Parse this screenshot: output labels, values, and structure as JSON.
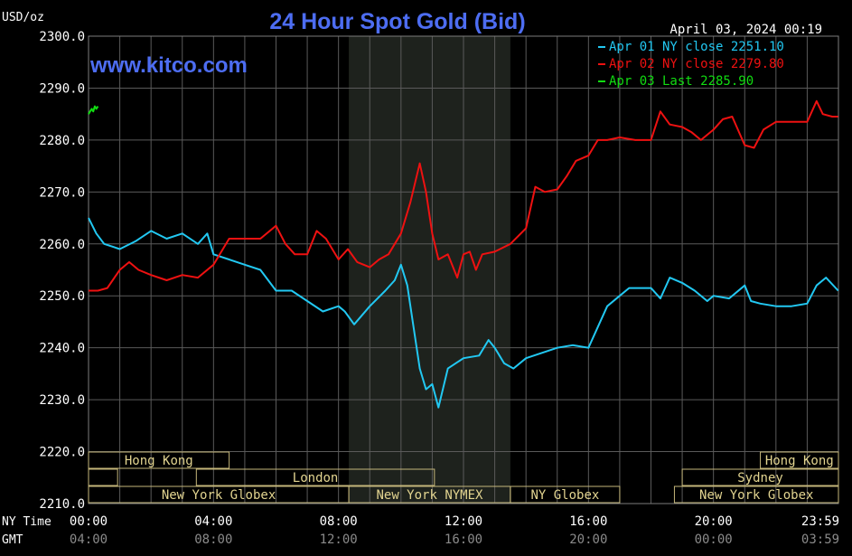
{
  "header": {
    "unit": "USD/oz",
    "title": "24 Hour Spot Gold (Bid)",
    "timestamp": "April 03, 2024 00:19",
    "website": "www.kitco.com"
  },
  "axis_labels": {
    "ny_time": "NY Time",
    "gmt": "GMT"
  },
  "chart_data": {
    "type": "line",
    "title": "24 Hour Spot Gold (Bid)",
    "ylabel": "USD/oz",
    "ylim": [
      2210,
      2300
    ],
    "xlim": [
      0,
      24
    ],
    "y_ticks": [
      "2300.0",
      "2290.0",
      "2280.0",
      "2270.0",
      "2260.0",
      "2250.0",
      "2240.0",
      "2230.0",
      "2220.0",
      "2210.0"
    ],
    "x_ticks_ny": [
      "00:00",
      "04:00",
      "08:00",
      "12:00",
      "16:00",
      "20:00",
      "23:59"
    ],
    "x_ticks_gmt": [
      "04:00",
      "08:00",
      "12:00",
      "16:00",
      "20:00",
      "00:00",
      "03:59"
    ],
    "x_tick_hours": [
      0,
      4,
      8,
      12,
      16,
      20,
      24
    ],
    "grid": true,
    "legend_position": "top-right",
    "shaded_hours": [
      8.33,
      13.5
    ],
    "series": [
      {
        "name": "Apr 01 NY close 2251.10",
        "color": "#22c8f2",
        "x": [
          0,
          0.25,
          0.5,
          1,
          1.5,
          2,
          2.5,
          3,
          3.5,
          3.8,
          4,
          4.5,
          5,
          5.5,
          6,
          6.5,
          7,
          7.5,
          8,
          8.2,
          8.5,
          9,
          9.5,
          9.8,
          10,
          10.2,
          10.4,
          10.6,
          10.8,
          11,
          11.2,
          11.5,
          12,
          12.5,
          12.8,
          13,
          13.3,
          13.6,
          14,
          14.5,
          15,
          15.5,
          16,
          16.3,
          16.6,
          17,
          17.3,
          17.6,
          18,
          18.3,
          18.6,
          19,
          19.4,
          19.8,
          20,
          20.5,
          21,
          21.2,
          21.5,
          22,
          22.5,
          23,
          23.3,
          23.6,
          23.99
        ],
        "y": [
          2265.0,
          2262.0,
          2260.0,
          2259.0,
          2260.5,
          2262.5,
          2261.0,
          2262.0,
          2260.0,
          2262.0,
          2258.0,
          2257.0,
          2256.0,
          2255.0,
          2251.0,
          2251.0,
          2249.0,
          2247.0,
          2248.0,
          2247.0,
          2244.5,
          2248.0,
          2251.0,
          2253.0,
          2256.0,
          2252.0,
          2244.0,
          2236.0,
          2232.0,
          2233.0,
          2228.5,
          2236.0,
          2238.0,
          2238.5,
          2241.5,
          2240.0,
          2237.0,
          2236.0,
          2238.0,
          2239.0,
          2240.0,
          2240.5,
          2240.0,
          2244.0,
          2248.0,
          2250.0,
          2251.5,
          2251.5,
          2251.5,
          2249.5,
          2253.5,
          2252.5,
          2251.0,
          2249.0,
          2250.0,
          2249.5,
          2252.0,
          2249.0,
          2248.5,
          2248.0,
          2248.0,
          2248.5,
          2252.0,
          2253.5,
          2251.0
        ]
      },
      {
        "name": "Apr 02 NY close 2279.80",
        "color": "#ee1111",
        "x": [
          0,
          0.3,
          0.6,
          1,
          1.3,
          1.6,
          2,
          2.5,
          3,
          3.5,
          4,
          4.5,
          5,
          5.5,
          6,
          6.3,
          6.6,
          7,
          7.3,
          7.6,
          8,
          8.3,
          8.6,
          9,
          9.3,
          9.6,
          10,
          10.3,
          10.6,
          10.8,
          11,
          11.2,
          11.5,
          11.8,
          12,
          12.2,
          12.4,
          12.6,
          13,
          13.5,
          14,
          14.3,
          14.6,
          15,
          15.3,
          15.6,
          16,
          16.3,
          16.6,
          17,
          17.5,
          18,
          18.3,
          18.6,
          19,
          19.3,
          19.6,
          20,
          20.3,
          20.6,
          21,
          21.3,
          21.6,
          22,
          22.5,
          23,
          23.3,
          23.5,
          23.8,
          23.99
        ],
        "y": [
          2251.0,
          2251.0,
          2251.5,
          2255.0,
          2256.5,
          2255.0,
          2254.0,
          2253.0,
          2254.0,
          2253.5,
          2256.0,
          2261.0,
          2261.0,
          2261.0,
          2263.5,
          2260.0,
          2258.0,
          2258.0,
          2262.5,
          2261.0,
          2257.0,
          2259.0,
          2256.5,
          2255.5,
          2257.0,
          2258.0,
          2262.0,
          2268.0,
          2275.5,
          2270.0,
          2262.0,
          2257.0,
          2258.0,
          2253.5,
          2258.0,
          2258.5,
          2255.0,
          2258.0,
          2258.5,
          2260.0,
          2263.0,
          2271.0,
          2270.0,
          2270.5,
          2273.0,
          2276.0,
          2277.0,
          2280.0,
          2280.0,
          2280.5,
          2280.0,
          2280.0,
          2285.5,
          2283.0,
          2282.5,
          2281.5,
          2280.0,
          2282.0,
          2284.0,
          2284.5,
          2279.0,
          2278.5,
          2282.0,
          2283.5,
          2283.5,
          2283.5,
          2287.5,
          2285.0,
          2284.5,
          2284.5
        ]
      },
      {
        "name": "Apr 03 Last 2285.90",
        "color": "#11dd11",
        "x": [
          0,
          0.05,
          0.1,
          0.15,
          0.2,
          0.25,
          0.3
        ],
        "y": [
          2285.0,
          2285.5,
          2286.0,
          2285.5,
          2286.5,
          2286.0,
          2286.5
        ]
      }
    ]
  },
  "sessions": [
    {
      "label": "Hong Kong",
      "row": 0,
      "start": 0,
      "end": 4.5,
      "show_label": true
    },
    {
      "label": "London",
      "row": 1,
      "start": 0,
      "end": 0.93,
      "show_label": false
    },
    {
      "label": "London",
      "row": 1,
      "start": 3.45,
      "end": 11.07,
      "show_label": true
    },
    {
      "label": "New York Globex",
      "row": 2,
      "start": 0,
      "end": 8.33,
      "show_label": true
    },
    {
      "label": "New York NYMEX",
      "row": 2,
      "start": 8.33,
      "end": 13.5,
      "show_label": true
    },
    {
      "label": "NY Globex",
      "row": 2,
      "start": 13.5,
      "end": 17.0,
      "show_label": true
    },
    {
      "label": "Hong Kong",
      "row": 0,
      "start": 21.5,
      "end": 24,
      "show_label": true
    },
    {
      "label": "Sydney",
      "row": 1,
      "start": 19.0,
      "end": 24,
      "show_label": true
    },
    {
      "label": "New York Globex",
      "row": 2,
      "start": 18.75,
      "end": 24,
      "show_label": true
    }
  ]
}
